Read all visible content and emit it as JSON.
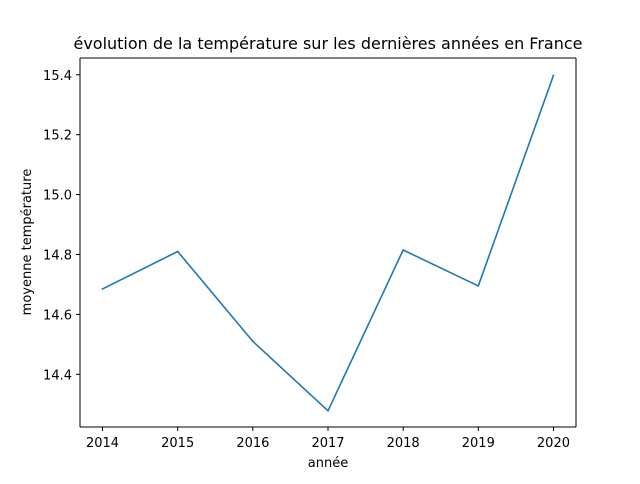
{
  "chart_data": {
    "type": "line",
    "title": "évolution de la température sur les dernières années en France",
    "xlabel": "année",
    "ylabel": "moyenne température",
    "x": [
      2014,
      2015,
      2016,
      2017,
      2018,
      2019,
      2020
    ],
    "x_tick_labels": [
      "2014",
      "2015",
      "2016",
      "2017",
      "2018",
      "2019",
      "2020"
    ],
    "y_tick_values": [
      14.4,
      14.6,
      14.8,
      15.0,
      15.2,
      15.4
    ],
    "y_tick_labels": [
      "14.4",
      "14.6",
      "14.8",
      "15.0",
      "15.2",
      "15.4"
    ],
    "xlim": [
      2013.7,
      2020.3
    ],
    "ylim": [
      14.224,
      15.456
    ],
    "grid": false,
    "legend": "none",
    "series": [
      {
        "color": "#1f77b4",
        "values": [
          14.685,
          14.81,
          14.51,
          14.278,
          14.815,
          14.695,
          15.398
        ]
      }
    ]
  }
}
